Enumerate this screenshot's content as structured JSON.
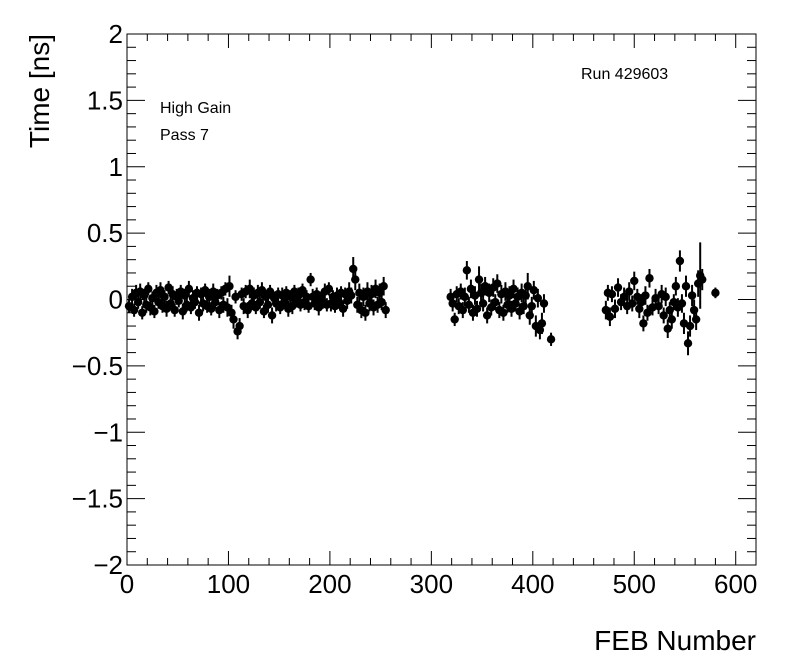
{
  "chart_data": {
    "type": "scatter",
    "title": "",
    "xlabel": "FEB Number",
    "ylabel": "Time [ns]",
    "xlim": [
      0,
      620
    ],
    "ylim": [
      -2,
      2
    ],
    "x_ticks": [
      "0",
      "100",
      "200",
      "300",
      "400",
      "500",
      "600"
    ],
    "y_ticks": [
      "2",
      "1.5",
      "1",
      "0.5",
      "0",
      "−0.5",
      "−1",
      "−1.5",
      "−2"
    ],
    "grid": false,
    "legend": "none",
    "marker_color": "#000000",
    "annotations": {
      "gain": "High Gain",
      "pass": "Pass 7",
      "run": "Run 429603"
    },
    "points": [
      [
        2,
        -0.05,
        0.05
      ],
      [
        5,
        0.02,
        0.06
      ],
      [
        7,
        -0.08,
        0.05
      ],
      [
        9,
        0.05,
        0.06
      ],
      [
        11,
        -0.02,
        0.05
      ],
      [
        13,
        0.06,
        0.06
      ],
      [
        15,
        -0.1,
        0.05
      ],
      [
        17,
        0.03,
        0.05
      ],
      [
        19,
        -0.04,
        0.06
      ],
      [
        21,
        0.08,
        0.05
      ],
      [
        23,
        -0.06,
        0.06
      ],
      [
        25,
        0.01,
        0.05
      ],
      [
        27,
        -0.09,
        0.05
      ],
      [
        29,
        0.05,
        0.06
      ],
      [
        31,
        -0.02,
        0.05
      ],
      [
        33,
        0.07,
        0.06
      ],
      [
        35,
        -0.05,
        0.05
      ],
      [
        37,
        0.02,
        0.05
      ],
      [
        39,
        -0.07,
        0.06
      ],
      [
        41,
        0.09,
        0.05
      ],
      [
        43,
        -0.03,
        0.05
      ],
      [
        45,
        0.04,
        0.06
      ],
      [
        47,
        -0.08,
        0.05
      ],
      [
        49,
        0.02,
        0.06
      ],
      [
        51,
        -0.01,
        0.05
      ],
      [
        53,
        0.06,
        0.05
      ],
      [
        55,
        -0.09,
        0.06
      ],
      [
        57,
        0.03,
        0.05
      ],
      [
        59,
        -0.04,
        0.05
      ],
      [
        61,
        0.08,
        0.06
      ],
      [
        63,
        -0.06,
        0.05
      ],
      [
        65,
        0.01,
        0.06
      ],
      [
        67,
        -0.02,
        0.05
      ],
      [
        69,
        0.05,
        0.05
      ],
      [
        71,
        -0.1,
        0.06
      ],
      [
        73,
        0.04,
        0.05
      ],
      [
        75,
        -0.03,
        0.06
      ],
      [
        77,
        0.07,
        0.05
      ],
      [
        79,
        -0.05,
        0.05
      ],
      [
        81,
        0.02,
        0.06
      ],
      [
        83,
        -0.07,
        0.05
      ],
      [
        85,
        0.06,
        0.06
      ],
      [
        87,
        -0.02,
        0.05
      ],
      [
        89,
        0.03,
        0.05
      ],
      [
        91,
        -0.08,
        0.06
      ],
      [
        93,
        0.05,
        0.05
      ],
      [
        95,
        -0.04,
        0.06
      ],
      [
        97,
        0.08,
        0.05
      ],
      [
        99,
        -0.06,
        0.07
      ],
      [
        101,
        0.1,
        0.08
      ],
      [
        103,
        -0.1,
        0.06
      ],
      [
        105,
        -0.15,
        0.07
      ],
      [
        107,
        0.02,
        0.05
      ],
      [
        109,
        -0.24,
        0.06
      ],
      [
        111,
        -0.2,
        0.06
      ],
      [
        113,
        0.04,
        0.05
      ],
      [
        115,
        -0.05,
        0.06
      ],
      [
        117,
        0.06,
        0.05
      ],
      [
        119,
        -0.08,
        0.06
      ],
      [
        121,
        0.08,
        0.07
      ],
      [
        123,
        -0.03,
        0.05
      ],
      [
        125,
        0.03,
        0.06
      ],
      [
        127,
        -0.06,
        0.05
      ],
      [
        129,
        0.05,
        0.06
      ],
      [
        131,
        -0.02,
        0.05
      ],
      [
        133,
        0.07,
        0.06
      ],
      [
        135,
        -0.09,
        0.05
      ],
      [
        137,
        0.02,
        0.05
      ],
      [
        139,
        -0.04,
        0.06
      ],
      [
        141,
        0.06,
        0.05
      ],
      [
        143,
        -0.12,
        0.06
      ],
      [
        145,
        0.01,
        0.05
      ],
      [
        147,
        -0.03,
        0.06
      ],
      [
        149,
        0.04,
        0.05
      ],
      [
        151,
        -0.06,
        0.05
      ],
      [
        153,
        0.03,
        0.06
      ],
      [
        155,
        -0.02,
        0.05
      ],
      [
        157,
        0.05,
        0.05
      ],
      [
        159,
        -0.07,
        0.06
      ],
      [
        161,
        0.02,
        0.05
      ],
      [
        163,
        -0.05,
        0.06
      ],
      [
        165,
        0.06,
        0.05
      ],
      [
        167,
        -0.01,
        0.05
      ],
      [
        169,
        0.03,
        0.06
      ],
      [
        171,
        -0.04,
        0.05
      ],
      [
        173,
        0.07,
        0.05
      ],
      [
        175,
        -0.02,
        0.06
      ],
      [
        177,
        0.02,
        0.05
      ],
      [
        179,
        -0.05,
        0.05
      ],
      [
        181,
        0.15,
        0.05
      ],
      [
        183,
        0.02,
        0.06
      ],
      [
        185,
        -0.03,
        0.05
      ],
      [
        187,
        0.04,
        0.05
      ],
      [
        189,
        -0.06,
        0.06
      ],
      [
        191,
        0.01,
        0.05
      ],
      [
        193,
        -0.02,
        0.05
      ],
      [
        195,
        0.06,
        0.06
      ],
      [
        197,
        -0.04,
        0.05
      ],
      [
        199,
        0.08,
        0.05
      ],
      [
        201,
        -0.03,
        0.06
      ],
      [
        203,
        0.02,
        0.05
      ],
      [
        205,
        -0.05,
        0.05
      ],
      [
        207,
        0.03,
        0.06
      ],
      [
        209,
        -0.02,
        0.05
      ],
      [
        211,
        0.05,
        0.05
      ],
      [
        213,
        -0.07,
        0.06
      ],
      [
        215,
        0.04,
        0.05
      ],
      [
        217,
        -0.01,
        0.06
      ],
      [
        219,
        0.06,
        0.07
      ],
      [
        221,
        0.03,
        0.06
      ],
      [
        223,
        0.23,
        0.09
      ],
      [
        225,
        0.15,
        0.08
      ],
      [
        227,
        -0.04,
        0.06
      ],
      [
        229,
        0.05,
        0.07
      ],
      [
        231,
        -0.08,
        0.06
      ],
      [
        233,
        0.02,
        0.07
      ],
      [
        235,
        -0.1,
        0.06
      ],
      [
        237,
        0.06,
        0.07
      ],
      [
        239,
        -0.03,
        0.06
      ],
      [
        241,
        0.04,
        0.07
      ],
      [
        243,
        -0.06,
        0.06
      ],
      [
        245,
        0.08,
        0.07
      ],
      [
        247,
        -0.04,
        0.06
      ],
      [
        249,
        0.05,
        0.07
      ],
      [
        251,
        -0.02,
        0.06
      ],
      [
        253,
        0.1,
        0.07
      ],
      [
        255,
        -0.08,
        0.06
      ],
      [
        319,
        0.02,
        0.06
      ],
      [
        321,
        -0.03,
        0.06
      ],
      [
        323,
        -0.15,
        0.05
      ],
      [
        325,
        0.04,
        0.06
      ],
      [
        327,
        -0.05,
        0.06
      ],
      [
        329,
        0.06,
        0.06
      ],
      [
        331,
        -0.08,
        0.06
      ],
      [
        333,
        0.02,
        0.07
      ],
      [
        335,
        0.22,
        0.07
      ],
      [
        337,
        -0.04,
        0.06
      ],
      [
        339,
        0.08,
        0.07
      ],
      [
        341,
        -0.1,
        0.06
      ],
      [
        343,
        0.03,
        0.07
      ],
      [
        345,
        -0.07,
        0.06
      ],
      [
        347,
        0.15,
        0.1
      ],
      [
        349,
        0.05,
        0.07
      ],
      [
        351,
        -0.03,
        0.06
      ],
      [
        353,
        0.1,
        0.07
      ],
      [
        355,
        -0.12,
        0.06
      ],
      [
        357,
        0.05,
        0.07
      ],
      [
        359,
        -0.06,
        0.06
      ],
      [
        361,
        0.09,
        0.07
      ],
      [
        363,
        -0.02,
        0.06
      ],
      [
        365,
        0.12,
        0.07
      ],
      [
        367,
        -0.08,
        0.06
      ],
      [
        369,
        0.04,
        0.07
      ],
      [
        371,
        -0.1,
        0.06
      ],
      [
        373,
        0.06,
        0.07
      ],
      [
        375,
        -0.04,
        0.06
      ],
      [
        377,
        0.03,
        0.07
      ],
      [
        379,
        -0.07,
        0.06
      ],
      [
        381,
        0.08,
        0.07
      ],
      [
        383,
        -0.03,
        0.06
      ],
      [
        385,
        0.02,
        0.07
      ],
      [
        387,
        -0.09,
        0.06
      ],
      [
        389,
        0.05,
        0.07
      ],
      [
        391,
        -0.05,
        0.06
      ],
      [
        393,
        0.03,
        0.07
      ],
      [
        395,
        0.1,
        0.1
      ],
      [
        397,
        -0.12,
        0.07
      ],
      [
        399,
        -0.05,
        0.07
      ],
      [
        401,
        0.07,
        0.07
      ],
      [
        403,
        -0.2,
        0.08
      ],
      [
        405,
        0.01,
        0.07
      ],
      [
        407,
        -0.23,
        0.07
      ],
      [
        409,
        -0.18,
        0.08
      ],
      [
        411,
        -0.03,
        0.07
      ],
      [
        418,
        -0.3,
        0.05
      ],
      [
        472,
        -0.08,
        0.07
      ],
      [
        474,
        0.05,
        0.06
      ],
      [
        476,
        -0.13,
        0.07
      ],
      [
        478,
        0.04,
        0.06
      ],
      [
        481,
        -0.07,
        0.07
      ],
      [
        484,
        0.09,
        0.07
      ],
      [
        487,
        -0.02,
        0.06
      ],
      [
        490,
        0.02,
        0.07
      ],
      [
        493,
        -0.05,
        0.06
      ],
      [
        495,
        0.06,
        0.07
      ],
      [
        498,
        -0.03,
        0.06
      ],
      [
        500,
        0.14,
        0.07
      ],
      [
        503,
        0.02,
        0.06
      ],
      [
        505,
        -0.07,
        0.07
      ],
      [
        507,
        -0.02,
        0.06
      ],
      [
        509,
        -0.18,
        0.06
      ],
      [
        511,
        0.03,
        0.07
      ],
      [
        513,
        -0.1,
        0.06
      ],
      [
        515,
        0.16,
        0.07
      ],
      [
        518,
        -0.06,
        0.06
      ],
      [
        521,
        0.01,
        0.07
      ],
      [
        524,
        -0.05,
        0.06
      ],
      [
        527,
        0.04,
        0.07
      ],
      [
        529,
        -0.12,
        0.06
      ],
      [
        531,
        0.02,
        0.07
      ],
      [
        533,
        -0.22,
        0.07
      ],
      [
        535,
        -0.08,
        0.06
      ],
      [
        537,
        -0.15,
        0.07
      ],
      [
        539,
        -0.02,
        0.06
      ],
      [
        541,
        0.1,
        0.07
      ],
      [
        543,
        -0.06,
        0.07
      ],
      [
        545,
        0.29,
        0.08
      ],
      [
        547,
        -0.03,
        0.07
      ],
      [
        549,
        -0.18,
        0.08
      ],
      [
        551,
        0.1,
        0.08
      ],
      [
        553,
        -0.33,
        0.09
      ],
      [
        555,
        -0.2,
        0.08
      ],
      [
        557,
        0.03,
        0.08
      ],
      [
        559,
        -0.08,
        0.08
      ],
      [
        561,
        -0.15,
        0.08
      ],
      [
        563,
        0.12,
        0.1
      ],
      [
        565,
        0.18,
        0.25
      ],
      [
        567,
        0.15,
        0.08
      ],
      [
        580,
        0.05,
        0.04
      ]
    ]
  }
}
